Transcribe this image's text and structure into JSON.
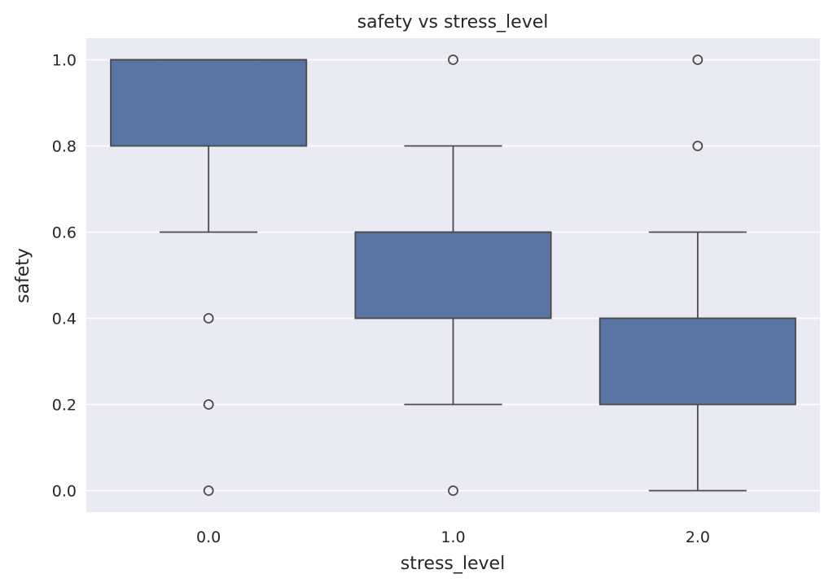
{
  "chart_data": {
    "type": "box",
    "title": "safety vs stress_level",
    "xlabel": "stress_level",
    "ylabel": "safety",
    "categories": [
      "0.0",
      "1.0",
      "2.0"
    ],
    "ylim": [
      -0.05,
      1.05
    ],
    "yticks": [
      0.0,
      0.2,
      0.4,
      0.6,
      0.8,
      1.0
    ],
    "ytick_labels": [
      "0.0",
      "0.2",
      "0.4",
      "0.6",
      "0.8",
      "1.0"
    ],
    "grid": true,
    "legend": "none",
    "boxes": [
      {
        "category": "0.0",
        "whisker_low": 0.6,
        "q1": 0.8,
        "median": 1.0,
        "q3": 1.0,
        "whisker_high": 1.0,
        "outliers": [
          0.4,
          0.2,
          0.0
        ]
      },
      {
        "category": "1.0",
        "whisker_low": 0.2,
        "q1": 0.4,
        "median": 0.6,
        "q3": 0.6,
        "whisker_high": 0.8,
        "outliers": [
          1.0,
          0.0
        ]
      },
      {
        "category": "2.0",
        "whisker_low": 0.0,
        "q1": 0.2,
        "median": 0.4,
        "q3": 0.4,
        "whisker_high": 0.6,
        "outliers": [
          1.0,
          0.8
        ]
      }
    ],
    "colors": {
      "box_fill": "#5875a4",
      "line": "#4a4a4a",
      "plot_background": "#eaeaf2",
      "grid": "#ffffff",
      "text": "#262626"
    }
  }
}
